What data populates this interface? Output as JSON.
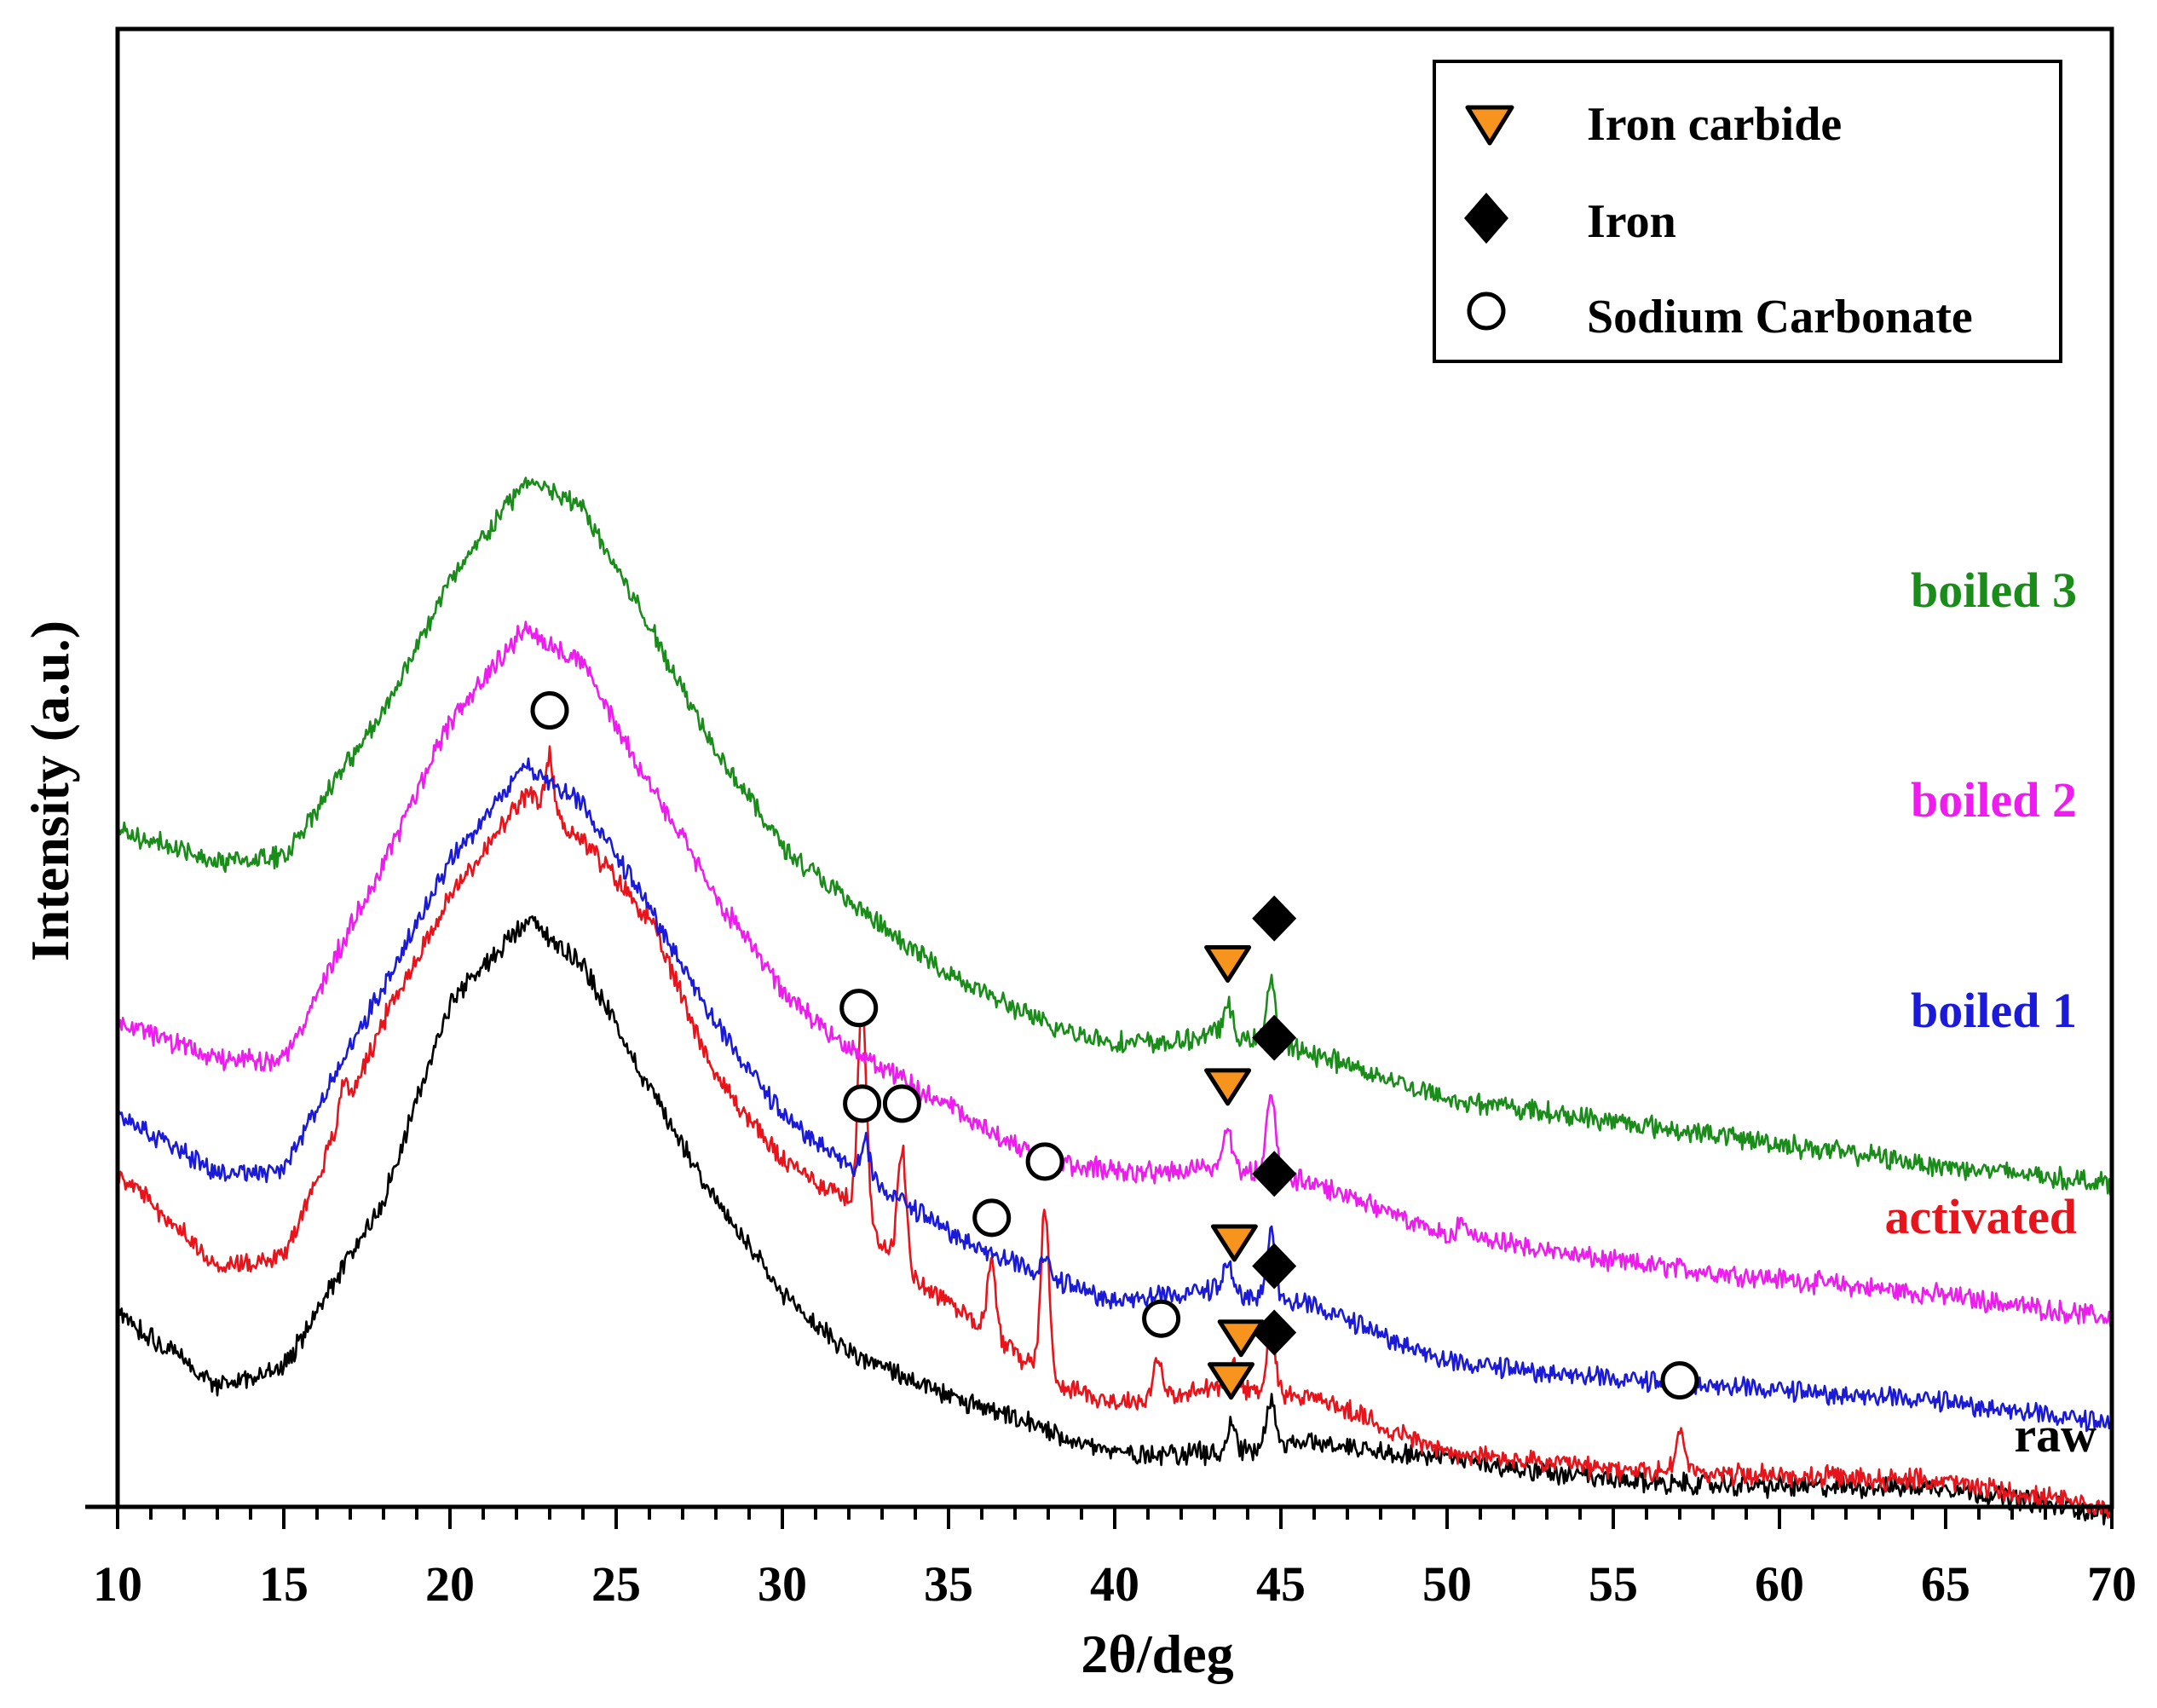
{
  "chart_data": {
    "type": "line",
    "title": "",
    "xlabel": "2θ/deg",
    "ylabel": "Intensity (a.u.)",
    "xlim": [
      10,
      70
    ],
    "xticks": [
      "10",
      "15",
      "20",
      "25",
      "30",
      "35",
      "40",
      "45",
      "50",
      "55",
      "60",
      "65",
      "70"
    ],
    "yticks_shown": false,
    "legend": {
      "position": "top-right",
      "entries": [
        {
          "name": "Iron carbide",
          "marker": "triangle-down-icon",
          "color": "#F7941D"
        },
        {
          "name": "Iron",
          "marker": "diamond-icon",
          "color": "#000000"
        },
        {
          "name": "Sodium Carbonate",
          "marker": "circle-open-icon",
          "color": "#ffffff"
        }
      ]
    },
    "series": [
      {
        "name": "raw",
        "color": "#000000",
        "profile": [
          [
            10,
            0.3
          ],
          [
            13,
            0.17
          ],
          [
            15,
            0.2
          ],
          [
            18,
            0.5
          ],
          [
            20,
            0.85
          ],
          [
            22.3,
            1.0
          ],
          [
            24,
            0.92
          ],
          [
            26,
            0.7
          ],
          [
            28,
            0.5
          ],
          [
            30,
            0.33
          ],
          [
            32,
            0.23
          ],
          [
            35,
            0.15
          ],
          [
            38,
            0.09
          ],
          [
            40,
            0.05
          ],
          [
            42,
            0.05
          ],
          [
            43,
            0.05
          ],
          [
            46,
            0.07
          ],
          [
            50,
            0.04
          ],
          [
            55,
            0.0
          ],
          [
            60,
            -0.01
          ],
          [
            65,
            -0.01
          ],
          [
            70,
            -0.06
          ]
        ],
        "peaks": [
          [
            43.5,
            0.05
          ],
          [
            44.7,
            0.09
          ]
        ],
        "markers": [
          {
            "type": "iron-carbide",
            "x": 43.5
          },
          {
            "type": "iron",
            "x": 44.8
          }
        ]
      },
      {
        "name": "activated",
        "color": "#E8141B",
        "profile": [
          [
            10,
            0.55
          ],
          [
            13,
            0.38
          ],
          [
            15,
            0.4
          ],
          [
            18,
            0.82
          ],
          [
            20,
            1.04
          ],
          [
            22.3,
            1.22
          ],
          [
            24,
            1.14
          ],
          [
            26,
            1.0
          ],
          [
            28,
            0.72
          ],
          [
            30,
            0.57
          ],
          [
            32,
            0.5
          ],
          [
            34,
            0.36
          ],
          [
            36,
            0.28
          ],
          [
            38,
            0.18
          ],
          [
            40,
            0.14
          ],
          [
            42,
            0.15
          ],
          [
            43,
            0.17
          ],
          [
            46,
            0.15
          ],
          [
            50,
            0.05
          ],
          [
            55,
            0.02
          ],
          [
            60,
            0.01
          ],
          [
            65,
            0.0
          ],
          [
            70,
            -0.05
          ]
        ],
        "peaks": [
          [
            16.8,
            0.06
          ],
          [
            23.0,
            0.1
          ],
          [
            32.4,
            0.38
          ],
          [
            33.6,
            0.2
          ],
          [
            36.3,
            0.12
          ],
          [
            37.9,
            0.3
          ],
          [
            41.3,
            0.08
          ],
          [
            43.6,
            0.05
          ],
          [
            44.7,
            0.12
          ],
          [
            57.0,
            0.08
          ]
        ],
        "markers": [
          {
            "type": "sodium-carbonate",
            "x": 23.0
          },
          {
            "type": "sodium-carbonate",
            "x": 32.3
          },
          {
            "type": "sodium-carbonate",
            "x": 33.6
          },
          {
            "type": "sodium-carbonate",
            "x": 36.3
          },
          {
            "type": "sodium-carbonate",
            "x": 37.9
          },
          {
            "type": "sodium-carbonate",
            "x": 41.4
          },
          {
            "type": "iron-carbide",
            "x": 43.8
          },
          {
            "type": "iron",
            "x": 44.8
          },
          {
            "type": "sodium-carbonate",
            "x": 57.0
          }
        ]
      },
      {
        "name": "boiled 1",
        "color": "#1A1AD8",
        "profile": [
          [
            10,
            0.65
          ],
          [
            13,
            0.55
          ],
          [
            15,
            0.55
          ],
          [
            18,
            0.88
          ],
          [
            20,
            1.1
          ],
          [
            22.3,
            1.27
          ],
          [
            24,
            1.2
          ],
          [
            26,
            1.02
          ],
          [
            28,
            0.81
          ],
          [
            30,
            0.65
          ],
          [
            32,
            0.56
          ],
          [
            34,
            0.48
          ],
          [
            36,
            0.41
          ],
          [
            38,
            0.36
          ],
          [
            40,
            0.32
          ],
          [
            42,
            0.33
          ],
          [
            43,
            0.34
          ],
          [
            46,
            0.31
          ],
          [
            50,
            0.21
          ],
          [
            55,
            0.18
          ],
          [
            60,
            0.16
          ],
          [
            65,
            0.14
          ],
          [
            70,
            0.1
          ]
        ],
        "peaks": [
          [
            32.5,
            0.06
          ],
          [
            37.9,
            0.03
          ],
          [
            43.4,
            0.05
          ],
          [
            44.7,
            0.12
          ]
        ],
        "markers": [
          {
            "type": "sodium-carbonate",
            "x": 32.4
          },
          {
            "type": "iron-carbide",
            "x": 43.6
          },
          {
            "type": "iron",
            "x": 44.8
          }
        ]
      },
      {
        "name": "boiled 2",
        "color": "#EE1CEE",
        "profile": [
          [
            10,
            0.82
          ],
          [
            13,
            0.75
          ],
          [
            15,
            0.75
          ],
          [
            18,
            1.1
          ],
          [
            20,
            1.35
          ],
          [
            22.3,
            1.52
          ],
          [
            24,
            1.45
          ],
          [
            26,
            1.24
          ],
          [
            28,
            1.04
          ],
          [
            30,
            0.87
          ],
          [
            32,
            0.77
          ],
          [
            34,
            0.7
          ],
          [
            36,
            0.63
          ],
          [
            38,
            0.57
          ],
          [
            40,
            0.55
          ],
          [
            42,
            0.55
          ],
          [
            43,
            0.56
          ],
          [
            46,
            0.53
          ],
          [
            50,
            0.44
          ],
          [
            55,
            0.39
          ],
          [
            60,
            0.36
          ],
          [
            65,
            0.33
          ],
          [
            70,
            0.29
          ]
        ],
        "peaks": [
          [
            43.4,
            0.07
          ],
          [
            44.7,
            0.15
          ],
          [
            50.5,
            0.03
          ]
        ],
        "markers": [
          {
            "type": "iron-carbide",
            "x": 43.4
          },
          {
            "type": "iron",
            "x": 44.8
          }
        ]
      },
      {
        "name": "boiled 3",
        "color": "#1A8C1A",
        "profile": [
          [
            10,
            1.16
          ],
          [
            13,
            1.1
          ],
          [
            15,
            1.11
          ],
          [
            18,
            1.37
          ],
          [
            20,
            1.6
          ],
          [
            22.3,
            1.78
          ],
          [
            24,
            1.73
          ],
          [
            26,
            1.52
          ],
          [
            28,
            1.3
          ],
          [
            30,
            1.13
          ],
          [
            32,
            1.03
          ],
          [
            34,
            0.94
          ],
          [
            36,
            0.87
          ],
          [
            38,
            0.81
          ],
          [
            40,
            0.78
          ],
          [
            42,
            0.78
          ],
          [
            43,
            0.8
          ],
          [
            46,
            0.76
          ],
          [
            50,
            0.68
          ],
          [
            55,
            0.64
          ],
          [
            60,
            0.6
          ],
          [
            65,
            0.56
          ],
          [
            70,
            0.53
          ]
        ],
        "peaks": [
          [
            43.4,
            0.05
          ],
          [
            44.7,
            0.12
          ]
        ],
        "markers": [
          {
            "type": "iron-carbide",
            "x": 43.4
          },
          {
            "type": "iron",
            "x": 44.8
          }
        ]
      }
    ]
  }
}
